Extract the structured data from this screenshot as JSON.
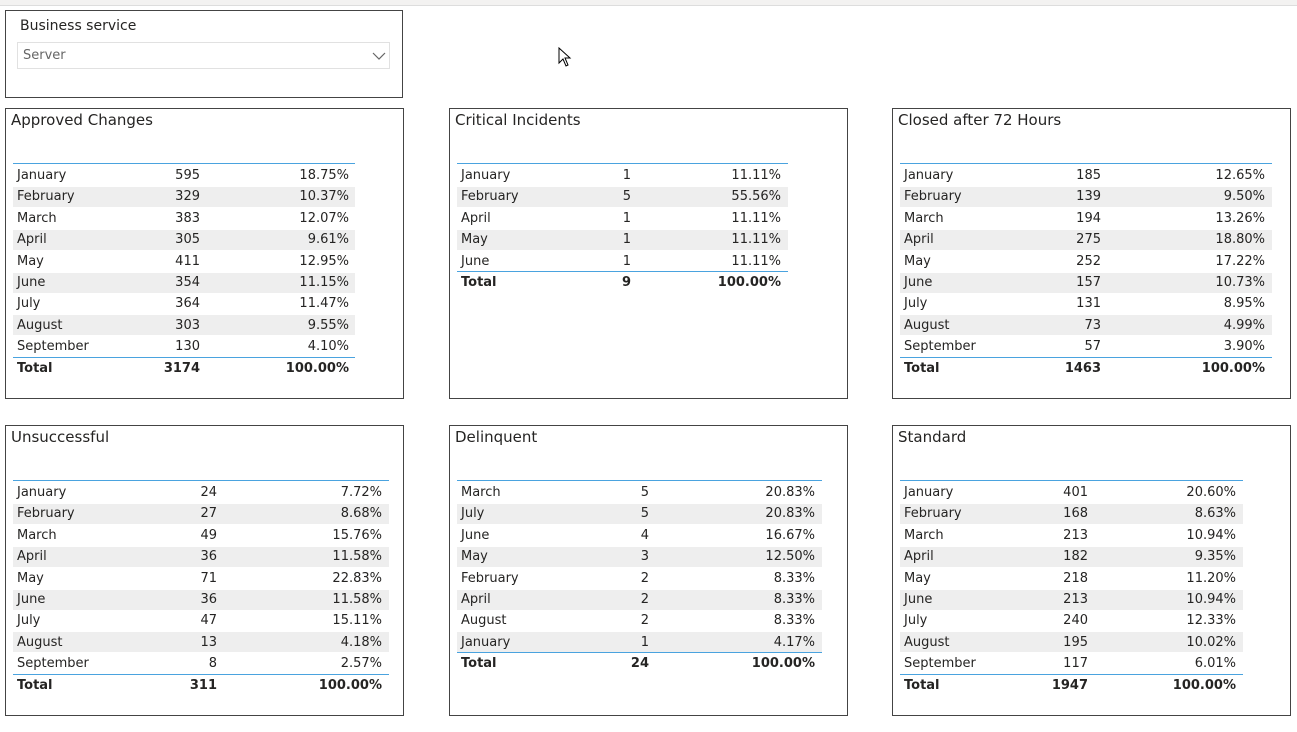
{
  "slicer": {
    "label": "Business service",
    "value": "Server"
  },
  "panels": [
    {
      "title": "Approved Changes",
      "rows": [
        [
          "January",
          "595",
          "18.75%"
        ],
        [
          "February",
          "329",
          "10.37%"
        ],
        [
          "March",
          "383",
          "12.07%"
        ],
        [
          "April",
          "305",
          "9.61%"
        ],
        [
          "May",
          "411",
          "12.95%"
        ],
        [
          "June",
          "354",
          "11.15%"
        ],
        [
          "July",
          "364",
          "11.47%"
        ],
        [
          "August",
          "303",
          "9.55%"
        ],
        [
          "September",
          "130",
          "4.10%"
        ]
      ],
      "total": [
        "Total",
        "3174",
        "100.00%"
      ]
    },
    {
      "title": "Critical Incidents",
      "rows": [
        [
          "January",
          "1",
          "11.11%"
        ],
        [
          "February",
          "5",
          "55.56%"
        ],
        [
          "April",
          "1",
          "11.11%"
        ],
        [
          "May",
          "1",
          "11.11%"
        ],
        [
          "June",
          "1",
          "11.11%"
        ]
      ],
      "total": [
        "Total",
        "9",
        "100.00%"
      ]
    },
    {
      "title": "Closed after 72 Hours",
      "rows": [
        [
          "January",
          "185",
          "12.65%"
        ],
        [
          "February",
          "139",
          "9.50%"
        ],
        [
          "March",
          "194",
          "13.26%"
        ],
        [
          "April",
          "275",
          "18.80%"
        ],
        [
          "May",
          "252",
          "17.22%"
        ],
        [
          "June",
          "157",
          "10.73%"
        ],
        [
          "July",
          "131",
          "8.95%"
        ],
        [
          "August",
          "73",
          "4.99%"
        ],
        [
          "September",
          "57",
          "3.90%"
        ]
      ],
      "total": [
        "Total",
        "1463",
        "100.00%"
      ]
    },
    {
      "title": "Unsuccessful",
      "rows": [
        [
          "January",
          "24",
          "7.72%"
        ],
        [
          "February",
          "27",
          "8.68%"
        ],
        [
          "March",
          "49",
          "15.76%"
        ],
        [
          "April",
          "36",
          "11.58%"
        ],
        [
          "May",
          "71",
          "22.83%"
        ],
        [
          "June",
          "36",
          "11.58%"
        ],
        [
          "July",
          "47",
          "15.11%"
        ],
        [
          "August",
          "13",
          "4.18%"
        ],
        [
          "September",
          "8",
          "2.57%"
        ]
      ],
      "total": [
        "Total",
        "311",
        "100.00%"
      ]
    },
    {
      "title": "Delinquent",
      "rows": [
        [
          "March",
          "5",
          "20.83%"
        ],
        [
          "July",
          "5",
          "20.83%"
        ],
        [
          "June",
          "4",
          "16.67%"
        ],
        [
          "May",
          "3",
          "12.50%"
        ],
        [
          "February",
          "2",
          "8.33%"
        ],
        [
          "April",
          "2",
          "8.33%"
        ],
        [
          "August",
          "2",
          "8.33%"
        ],
        [
          "January",
          "1",
          "4.17%"
        ]
      ],
      "total": [
        "Total",
        "24",
        "100.00%"
      ]
    },
    {
      "title": "Standard",
      "rows": [
        [
          "January",
          "401",
          "20.60%"
        ],
        [
          "February",
          "168",
          "8.63%"
        ],
        [
          "March",
          "213",
          "10.94%"
        ],
        [
          "April",
          "182",
          "9.35%"
        ],
        [
          "May",
          "218",
          "11.20%"
        ],
        [
          "June",
          "213",
          "10.94%"
        ],
        [
          "July",
          "240",
          "12.33%"
        ],
        [
          "August",
          "195",
          "10.02%"
        ],
        [
          "September",
          "117",
          "6.01%"
        ]
      ],
      "total": [
        "Total",
        "1947",
        "100.00%"
      ]
    }
  ]
}
